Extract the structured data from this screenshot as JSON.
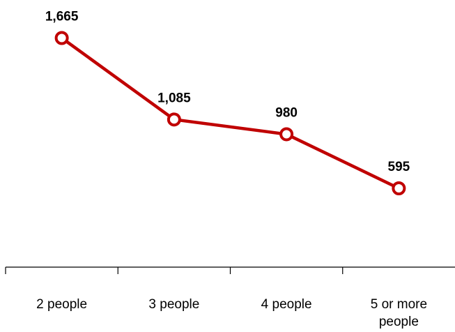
{
  "chart_data": {
    "type": "line",
    "categories": [
      "2 people",
      "3 people",
      "4 people",
      "5 or more people"
    ],
    "category_lines": [
      [
        "2 people"
      ],
      [
        "3 people"
      ],
      [
        "4 people"
      ],
      [
        "5 or more",
        "people"
      ]
    ],
    "values": [
      1665,
      1085,
      980,
      595
    ],
    "data_labels": [
      "1,665",
      "1,085",
      "980",
      "595"
    ],
    "title": "",
    "xlabel": "",
    "ylabel": "",
    "ylim": [
      -1000,
      1870
    ],
    "grid": false,
    "legend": "none",
    "line_color": "#c00000",
    "marker": "hollow-circle"
  }
}
